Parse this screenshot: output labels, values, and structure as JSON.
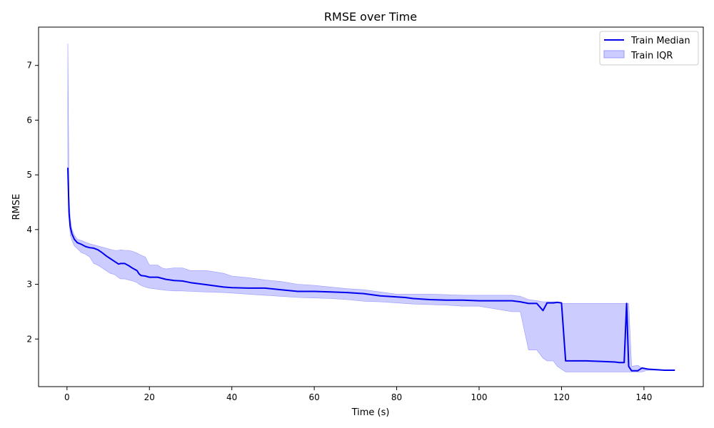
{
  "colors": {
    "median_line": "#0000ee",
    "iqr_fill": "#ccccff",
    "iqr_edge": "#9999ff"
  },
  "chart_data": {
    "type": "line",
    "title": "RMSE over Time",
    "xlabel": "Time (s)",
    "ylabel": "RMSE",
    "xlim": [
      -6.9,
      154.4
    ],
    "ylim": [
      1.13,
      7.7
    ],
    "xticks": [
      0,
      20,
      40,
      60,
      80,
      100,
      120,
      140
    ],
    "yticks": [
      2,
      3,
      4,
      5,
      6,
      7
    ],
    "grid": false,
    "legend_position": "top-right",
    "series": [
      {
        "name": "Train Median",
        "kind": "line",
        "x": [
          0.2,
          0.5,
          0.8,
          1.2,
          1.8,
          2.5,
          3.5,
          4.5,
          5.5,
          6.5,
          7.5,
          8.5,
          9.5,
          10.5,
          11.5,
          12.5,
          13.0,
          14.0,
          15.0,
          16.0,
          17.0,
          17.5,
          18.0,
          19.0,
          20.0,
          21.0,
          22.0,
          23.0,
          24.0,
          26.0,
          28.0,
          30.0,
          34.0,
          38.0,
          40.0,
          44.0,
          48.0,
          52.0,
          56.0,
          60.0,
          64.0,
          68.0,
          72.0,
          76.0,
          80.0,
          82.0,
          84.0,
          88.0,
          92.0,
          96.0,
          100.0,
          104.0,
          108.0,
          110.0,
          112.0,
          114.0,
          115.5,
          116.5,
          118.0,
          119.0,
          120.0,
          121.0,
          122.0,
          126.0,
          130.0,
          133.0,
          134.0,
          135.2,
          135.8,
          136.3,
          137.0,
          138.5,
          139.5,
          141.0,
          143.0,
          145.0,
          147.5
        ],
        "y": [
          5.13,
          4.3,
          4.05,
          3.92,
          3.82,
          3.76,
          3.73,
          3.69,
          3.67,
          3.66,
          3.63,
          3.58,
          3.52,
          3.47,
          3.42,
          3.37,
          3.38,
          3.38,
          3.34,
          3.29,
          3.25,
          3.19,
          3.16,
          3.15,
          3.13,
          3.13,
          3.13,
          3.11,
          3.09,
          3.07,
          3.06,
          3.03,
          2.99,
          2.95,
          2.94,
          2.93,
          2.93,
          2.9,
          2.87,
          2.87,
          2.86,
          2.85,
          2.83,
          2.79,
          2.77,
          2.76,
          2.74,
          2.72,
          2.71,
          2.71,
          2.7,
          2.7,
          2.7,
          2.68,
          2.65,
          2.65,
          2.52,
          2.66,
          2.66,
          2.67,
          2.66,
          1.6,
          1.6,
          1.6,
          1.59,
          1.58,
          1.57,
          1.57,
          2.65,
          1.5,
          1.42,
          1.42,
          1.47,
          1.45,
          1.44,
          1.43,
          1.43
        ]
      },
      {
        "name": "Train IQR",
        "kind": "band",
        "x": [
          0.2,
          0.5,
          0.8,
          1.2,
          1.8,
          2.5,
          3.5,
          4.5,
          5.5,
          6.5,
          7.5,
          8.5,
          9.5,
          10.5,
          11.5,
          12.5,
          13.0,
          14.0,
          15.0,
          16.0,
          17.0,
          17.5,
          18.0,
          19.0,
          20.0,
          21.0,
          22.0,
          23.0,
          24.0,
          26.0,
          28.0,
          30.0,
          34.0,
          38.0,
          40.0,
          44.0,
          48.0,
          52.0,
          56.0,
          60.0,
          64.0,
          68.0,
          72.0,
          76.0,
          80.0,
          82.0,
          84.0,
          88.0,
          92.0,
          96.0,
          100.0,
          104.0,
          108.0,
          110.0,
          112.0,
          114.0,
          115.5,
          116.5,
          118.0,
          119.0,
          120.0,
          121.0,
          122.0,
          126.0,
          130.0,
          133.0,
          134.0,
          135.2,
          135.8,
          136.3,
          137.0,
          138.5,
          139.5,
          141.0,
          143.0,
          145.0,
          147.5
        ],
        "upper": [
          7.4,
          4.6,
          4.2,
          4.0,
          3.9,
          3.82,
          3.8,
          3.77,
          3.74,
          3.72,
          3.7,
          3.68,
          3.66,
          3.64,
          3.62,
          3.62,
          3.63,
          3.62,
          3.62,
          3.6,
          3.57,
          3.55,
          3.53,
          3.5,
          3.35,
          3.35,
          3.35,
          3.3,
          3.28,
          3.3,
          3.3,
          3.25,
          3.25,
          3.2,
          3.15,
          3.12,
          3.08,
          3.05,
          3.0,
          2.98,
          2.95,
          2.92,
          2.9,
          2.86,
          2.82,
          2.82,
          2.82,
          2.82,
          2.81,
          2.8,
          2.8,
          2.8,
          2.8,
          2.78,
          2.72,
          2.7,
          2.68,
          2.68,
          2.68,
          2.68,
          2.65,
          2.65,
          2.65,
          2.65,
          2.65,
          2.65,
          2.65,
          2.65,
          2.65,
          2.65,
          1.5,
          1.52,
          1.47,
          1.45,
          1.44,
          1.43,
          1.43
        ],
        "lower": [
          5.0,
          4.2,
          3.9,
          3.8,
          3.7,
          3.65,
          3.58,
          3.55,
          3.5,
          3.38,
          3.35,
          3.3,
          3.25,
          3.2,
          3.18,
          3.12,
          3.1,
          3.1,
          3.08,
          3.06,
          3.03,
          3.0,
          2.98,
          2.95,
          2.93,
          2.92,
          2.91,
          2.9,
          2.89,
          2.88,
          2.88,
          2.87,
          2.86,
          2.85,
          2.84,
          2.82,
          2.8,
          2.78,
          2.76,
          2.75,
          2.74,
          2.72,
          2.69,
          2.68,
          2.66,
          2.65,
          2.64,
          2.63,
          2.62,
          2.6,
          2.6,
          2.55,
          2.5,
          2.5,
          1.8,
          1.8,
          1.65,
          1.6,
          1.6,
          1.5,
          1.45,
          1.4,
          1.4,
          1.4,
          1.4,
          1.4,
          1.4,
          1.4,
          1.4,
          1.4,
          1.4,
          1.4,
          1.4,
          1.43,
          1.43,
          1.43,
          1.43
        ]
      }
    ]
  }
}
